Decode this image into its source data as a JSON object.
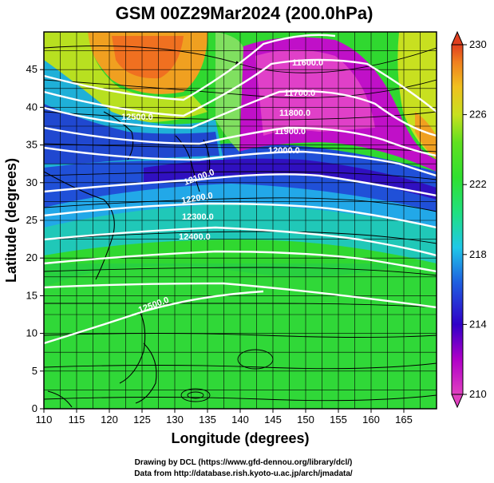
{
  "title": "GSM 00Z29Mar2024 (200.0hPa)",
  "axes": {
    "xlabel": "Longitude (degrees)",
    "ylabel": "Latitude  (degrees)",
    "xticks": [
      110,
      115,
      120,
      125,
      130,
      135,
      140,
      145,
      150,
      155,
      160,
      165
    ],
    "yticks": [
      0,
      5,
      10,
      15,
      20,
      25,
      30,
      35,
      40,
      45
    ],
    "xrange": [
      110,
      170
    ],
    "yrange": [
      0,
      50
    ]
  },
  "colorbar": {
    "ticks": [
      230,
      226,
      222,
      218,
      214,
      210
    ],
    "range": [
      210,
      230
    ],
    "colors": [
      "#e040c0",
      "#b000c8",
      "#3000c8",
      "#1f5fe0",
      "#20c8e8",
      "#20e080",
      "#30e030",
      "#60e020",
      "#c8e020",
      "#f0c020",
      "#f08020",
      "#e04020"
    ]
  },
  "contour_labels": [
    "11600.0",
    "11700.0",
    "11800.0",
    "11900.0",
    "12000.0",
    "12100.0",
    "12200.0",
    "12300.0",
    "12400.0",
    "12500.0",
    "12500.0"
  ],
  "credits": {
    "line1": "Drawing by DCL (https://www.gfd-dennou.org/library/dcl/)",
    "line2": "Data from http://database.rish.kyoto-u.ac.jp/arch/jmadata/"
  }
}
